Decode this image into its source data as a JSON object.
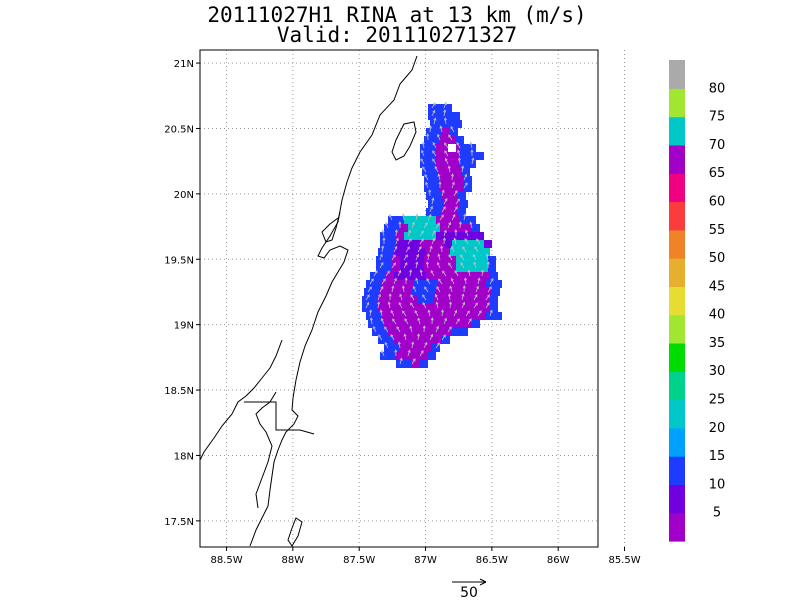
{
  "header": {
    "title_line1": "20111027H1 RINA at 13 km (m/s)",
    "title_line2": "Valid: 201110271327"
  },
  "map": {
    "lat_labels": [
      "21N",
      "20.5N",
      "20N",
      "19.5N",
      "19N",
      "18.5N",
      "18N",
      "17.5N"
    ],
    "lon_labels": [
      "88.5W",
      "88W",
      "87.5W",
      "87W",
      "86.5W",
      "86W",
      "85.5W"
    ],
    "lat_range": [
      17.3,
      21.1
    ],
    "lon_range": [
      -88.7,
      -85.7
    ],
    "grid": true,
    "coastline_color": "#000000",
    "gridline_color": "#9a9a9a"
  },
  "colorbar": {
    "labels": [
      "5",
      "10",
      "15",
      "20",
      "25",
      "30",
      "35",
      "40",
      "45",
      "50",
      "55",
      "60",
      "65",
      "70",
      "75",
      "80"
    ],
    "colors": [
      "#a000c8",
      "#7000e0",
      "#1e3cff",
      "#00a0ff",
      "#00c8c8",
      "#00d28c",
      "#00dc00",
      "#a0e632",
      "#e6dc32",
      "#e6af2d",
      "#f08228",
      "#fa3c3c",
      "#f00082",
      "#a000c8",
      "#00c8c8",
      "#a0e632",
      "#aaaaaa"
    ]
  },
  "vector_key": {
    "label": "50",
    "color": "#000000"
  },
  "wind_field": {
    "vector_color": "#c0c0c0",
    "speed_colors": {
      "low": "#a000c8",
      "mid": "#7000e0",
      "high": "#1e3cff",
      "peak": "#00c8c8"
    }
  }
}
